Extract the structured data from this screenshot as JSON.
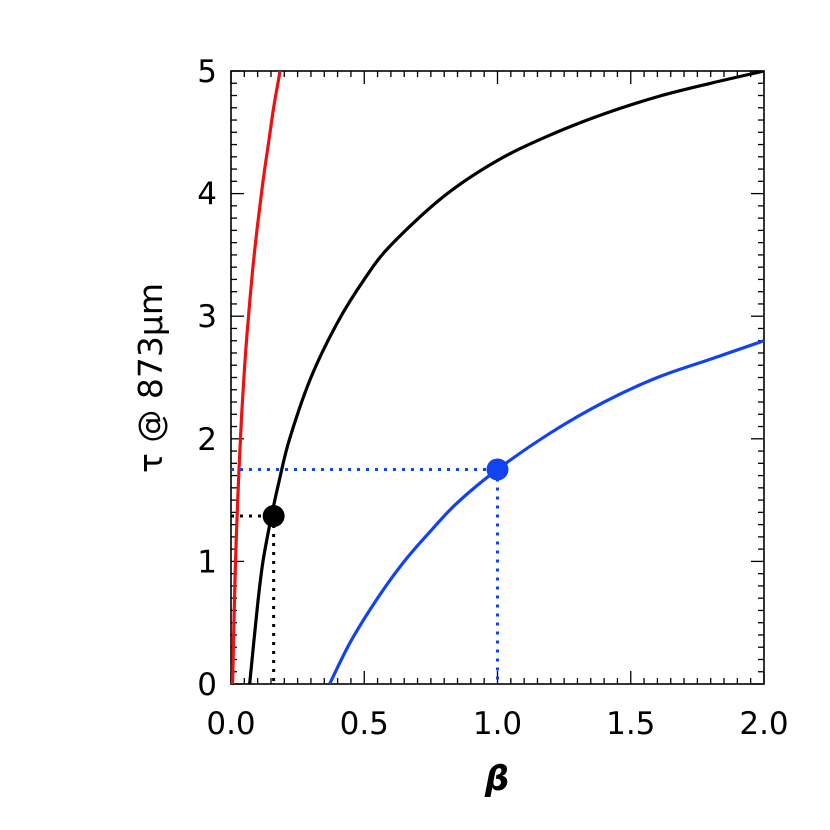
{
  "chart_data": {
    "type": "line",
    "xlabel": "β",
    "ylabel": "τ @ 873μm",
    "xlim": [
      0,
      2
    ],
    "ylim": [
      0,
      5
    ],
    "xticks": [
      0.0,
      0.5,
      1.0,
      1.5,
      2.0
    ],
    "xtick_labels": [
      "0.0",
      "0.5",
      "1.0",
      "1.5",
      "2.0"
    ],
    "yticks": [
      0,
      1,
      2,
      3,
      4,
      5
    ],
    "ytick_labels": [
      "0",
      "1",
      "2",
      "3",
      "4",
      "5"
    ],
    "grid": false,
    "legend": "none",
    "series": [
      {
        "color": "#ee1111",
        "x": [
          0.006,
          0.01,
          0.015,
          0.02,
          0.03,
          0.04,
          0.05,
          0.06,
          0.08,
          0.1,
          0.12,
          0.14,
          0.16,
          0.18,
          0.19
        ],
        "y": [
          0.0,
          0.4,
          0.85,
          1.2,
          1.75,
          2.2,
          2.55,
          2.85,
          3.35,
          3.75,
          4.1,
          4.4,
          4.7,
          4.95,
          5.1
        ]
      },
      {
        "color": "#000000",
        "x": [
          0.07,
          0.1,
          0.12,
          0.15,
          0.18,
          0.22,
          0.3,
          0.4,
          0.5,
          0.6,
          0.8,
          1.0,
          1.2,
          1.4,
          1.6,
          1.8,
          2.0
        ],
        "y": [
          0.0,
          0.65,
          1.0,
          1.35,
          1.65,
          2.0,
          2.5,
          2.95,
          3.3,
          3.58,
          3.98,
          4.27,
          4.48,
          4.65,
          4.79,
          4.9,
          5.0
        ]
      },
      {
        "color": "#1144ee",
        "x": [
          0.37,
          0.45,
          0.55,
          0.65,
          0.75,
          0.85,
          1.0,
          1.2,
          1.4,
          1.6,
          1.8,
          2.0
        ],
        "y": [
          0.0,
          0.35,
          0.7,
          1.0,
          1.25,
          1.48,
          1.75,
          2.05,
          2.3,
          2.5,
          2.65,
          2.8
        ]
      }
    ],
    "markers": [
      {
        "x": 0.16,
        "y": 1.37,
        "color": "#000000"
      },
      {
        "x": 1.0,
        "y": 1.75,
        "color": "#1144ee"
      }
    ]
  }
}
